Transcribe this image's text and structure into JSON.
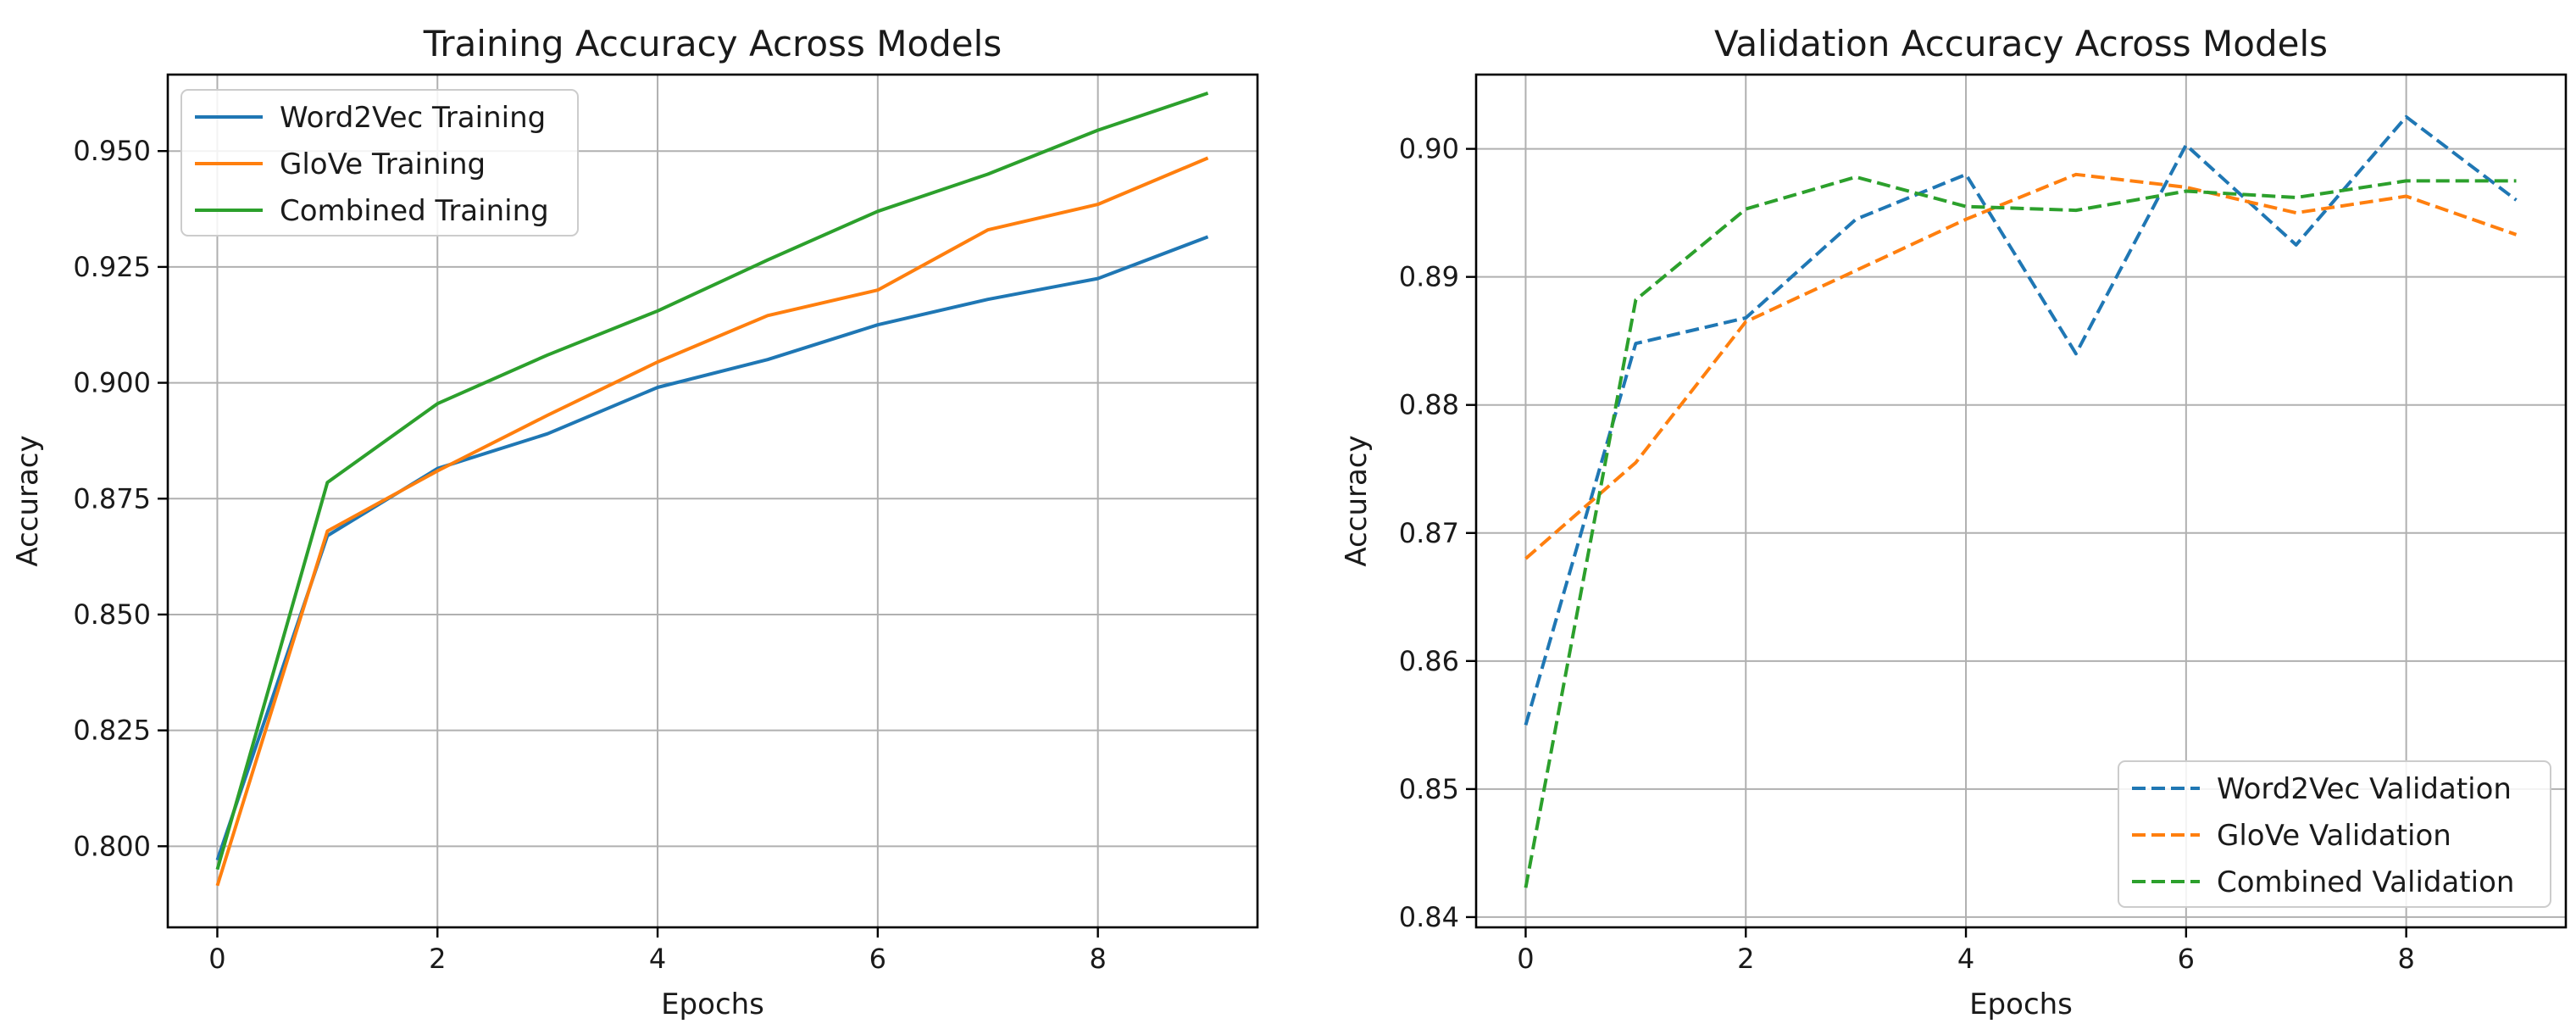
{
  "chart_data": [
    {
      "type": "line",
      "title": "Training Accuracy Across Models",
      "xlabel": "Epochs",
      "ylabel": "Accuracy",
      "x": [
        0,
        1,
        2,
        3,
        4,
        5,
        6,
        7,
        8,
        9
      ],
      "xticks": [
        0,
        2,
        4,
        6,
        8
      ],
      "xtick_labels": [
        "0",
        "2",
        "4",
        "6",
        "8"
      ],
      "yticks": [
        0.8,
        0.825,
        0.85,
        0.875,
        0.9,
        0.925,
        0.95
      ],
      "ytick_labels": [
        "0.800",
        "0.825",
        "0.850",
        "0.875",
        "0.900",
        "0.925",
        "0.950"
      ],
      "xlim": [
        -0.45,
        9.45
      ],
      "ylim": [
        0.7825,
        0.9665
      ],
      "grid": true,
      "legend_position": "top-left",
      "series": [
        {
          "name": "Word2Vec Training",
          "color": "#1f77b4",
          "style": "solid",
          "values": [
            0.797,
            0.867,
            0.8815,
            0.889,
            0.899,
            0.905,
            0.9125,
            0.918,
            0.9225,
            0.9315
          ]
        },
        {
          "name": "GloVe Training",
          "color": "#ff7f0e",
          "style": "solid",
          "values": [
            0.7915,
            0.868,
            0.881,
            0.893,
            0.9045,
            0.9145,
            0.92,
            0.933,
            0.9385,
            0.9485
          ]
        },
        {
          "name": "Combined Training",
          "color": "#2ca02c",
          "style": "solid",
          "values": [
            0.795,
            0.8785,
            0.8955,
            0.906,
            0.9155,
            0.9265,
            0.937,
            0.945,
            0.9545,
            0.9625
          ]
        }
      ]
    },
    {
      "type": "line",
      "title": "Validation Accuracy Across Models",
      "xlabel": "Epochs",
      "ylabel": "Accuracy",
      "x": [
        0,
        1,
        2,
        3,
        4,
        5,
        6,
        7,
        8,
        9
      ],
      "xticks": [
        0,
        2,
        4,
        6,
        8
      ],
      "xtick_labels": [
        "0",
        "2",
        "4",
        "6",
        "8"
      ],
      "yticks": [
        0.84,
        0.85,
        0.86,
        0.87,
        0.88,
        0.89,
        0.9
      ],
      "ytick_labels": [
        "0.84",
        "0.85",
        "0.86",
        "0.87",
        "0.88",
        "0.89",
        "0.90"
      ],
      "xlim": [
        -0.45,
        9.45
      ],
      "ylim": [
        0.8392,
        0.9058
      ],
      "grid": true,
      "legend_position": "bottom-right",
      "series": [
        {
          "name": "Word2Vec Validation",
          "color": "#1f77b4",
          "style": "dashed",
          "values": [
            0.855,
            0.8848,
            0.8868,
            0.8945,
            0.898,
            0.884,
            0.9003,
            0.8925,
            0.9025,
            0.896
          ]
        },
        {
          "name": "GloVe Validation",
          "color": "#ff7f0e",
          "style": "dashed",
          "values": [
            0.868,
            0.8755,
            0.8865,
            0.8905,
            0.8945,
            0.898,
            0.897,
            0.895,
            0.8963,
            0.8933
          ]
        },
        {
          "name": "Combined Validation",
          "color": "#2ca02c",
          "style": "dashed",
          "values": [
            0.8423,
            0.8882,
            0.8953,
            0.8978,
            0.8955,
            0.8952,
            0.8967,
            0.8962,
            0.8975,
            0.8975
          ]
        }
      ]
    }
  ]
}
